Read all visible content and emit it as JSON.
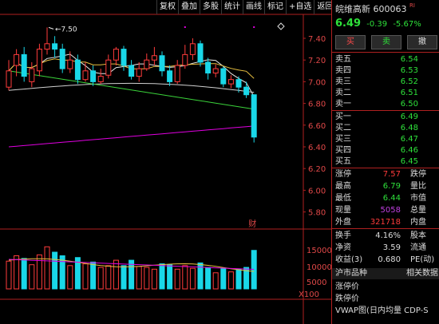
{
  "toolbar": [
    "复权",
    "叠加",
    "多股",
    "统计",
    "画线",
    "标记",
    "+自选",
    "返回"
  ],
  "price_axis": [
    "7.40",
    "7.20",
    "7.00",
    "6.80",
    "6.60",
    "6.40",
    "6.20",
    "6.00",
    "5.80"
  ],
  "volume_axis": [
    "15000",
    "10000",
    "5000",
    "X100"
  ],
  "high_annotation": "7.50",
  "event_marker": "财",
  "colors": {
    "up": "#ff3b3b",
    "down": "#19d7e8",
    "accent": "#b02020",
    "green": "#2ee03a",
    "magenta": "#e000e0"
  },
  "stock": {
    "name": "皖维高新",
    "code": "600063",
    "market_tag": "RI",
    "price": "6.49",
    "change": "-0.39",
    "change_pct": "-5.67%"
  },
  "buttons": {
    "buy": "买",
    "sell": "卖",
    "cancel": "撤"
  },
  "sell_orders": [
    {
      "label": "卖五",
      "price": "6.54"
    },
    {
      "label": "卖四",
      "price": "6.53"
    },
    {
      "label": "卖三",
      "price": "6.52"
    },
    {
      "label": "卖二",
      "price": "6.51"
    },
    {
      "label": "卖一",
      "price": "6.50"
    }
  ],
  "buy_orders": [
    {
      "label": "买一",
      "price": "6.49"
    },
    {
      "label": "买二",
      "price": "6.48"
    },
    {
      "label": "买三",
      "price": "6.47"
    },
    {
      "label": "买四",
      "price": "6.46"
    },
    {
      "label": "买五",
      "price": "6.45"
    }
  ],
  "stats": [
    {
      "label": "涨停",
      "value": "7.57",
      "label2": "跌停",
      "color": "#ff3b3b"
    },
    {
      "label": "最高",
      "value": "6.79",
      "label2": "量比",
      "color": "#2ee03a"
    },
    {
      "label": "最低",
      "value": "6.44",
      "label2": "市值",
      "color": "#2ee03a"
    },
    {
      "label": "现量",
      "value": "5058",
      "label2": "总量",
      "color": "#c040e0"
    },
    {
      "label": "外盘",
      "value": "321718",
      "label2": "内盘",
      "color": "#ff3b3b"
    }
  ],
  "fundamentals": [
    {
      "label": "换手",
      "value": "4.16%",
      "label2": "股本"
    },
    {
      "label": "净资",
      "value": "3.59",
      "label2": "流通"
    },
    {
      "label": "收益(3)",
      "value": "0.680",
      "label2": "PE(动)"
    }
  ],
  "sector": {
    "title": "沪市品种",
    "link": "相关数据",
    "items": [
      "涨停价",
      "跌停价",
      "VWAP图(日内均量 CDP-S"
    ]
  }
}
